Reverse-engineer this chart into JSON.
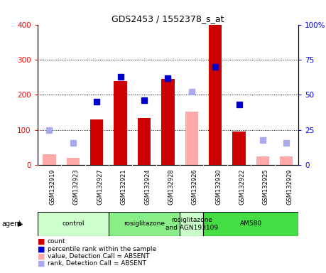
{
  "title": "GDS2453 / 1552378_s_at",
  "samples": [
    "GSM132919",
    "GSM132923",
    "GSM132927",
    "GSM132921",
    "GSM132924",
    "GSM132928",
    "GSM132926",
    "GSM132930",
    "GSM132922",
    "GSM132925",
    "GSM132929"
  ],
  "count_present": [
    null,
    null,
    130,
    240,
    135,
    245,
    null,
    400,
    95,
    null,
    null
  ],
  "count_absent": [
    30,
    20,
    null,
    null,
    null,
    null,
    152,
    null,
    null,
    25,
    25
  ],
  "rank_present_pct": [
    null,
    null,
    45,
    63,
    46,
    62,
    null,
    70,
    43,
    null,
    null
  ],
  "rank_absent_pct": [
    25,
    16,
    null,
    null,
    null,
    null,
    52,
    null,
    null,
    18,
    16
  ],
  "ylim_left": [
    0,
    400
  ],
  "yticks_left": [
    0,
    100,
    200,
    300,
    400
  ],
  "yticks_right_vals": [
    0,
    100,
    200,
    300,
    400
  ],
  "yticklabels_right": [
    "0",
    "25",
    "50",
    "75",
    "100%"
  ],
  "groups": [
    {
      "label": "control",
      "start": 0,
      "end": 3,
      "color": "#ccffcc"
    },
    {
      "label": "rosiglitazone",
      "start": 3,
      "end": 6,
      "color": "#88ee88"
    },
    {
      "label": "rosiglitazone\nand AGN193109",
      "start": 6,
      "end": 7,
      "color": "#ccffcc"
    },
    {
      "label": "AM580",
      "start": 7,
      "end": 11,
      "color": "#44dd44"
    }
  ],
  "color_count_present": "#cc0000",
  "color_count_absent": "#ffaaaa",
  "color_rank_present": "#0000cc",
  "color_rank_absent": "#aaaaee",
  "legend_items": [
    {
      "label": "count",
      "color": "#cc0000"
    },
    {
      "label": "percentile rank within the sample",
      "color": "#0000cc"
    },
    {
      "label": "value, Detection Call = ABSENT",
      "color": "#ffaaaa"
    },
    {
      "label": "rank, Detection Call = ABSENT",
      "color": "#aaaaee"
    }
  ],
  "background_color": "#ffffff",
  "tick_area_color": "#cccccc"
}
